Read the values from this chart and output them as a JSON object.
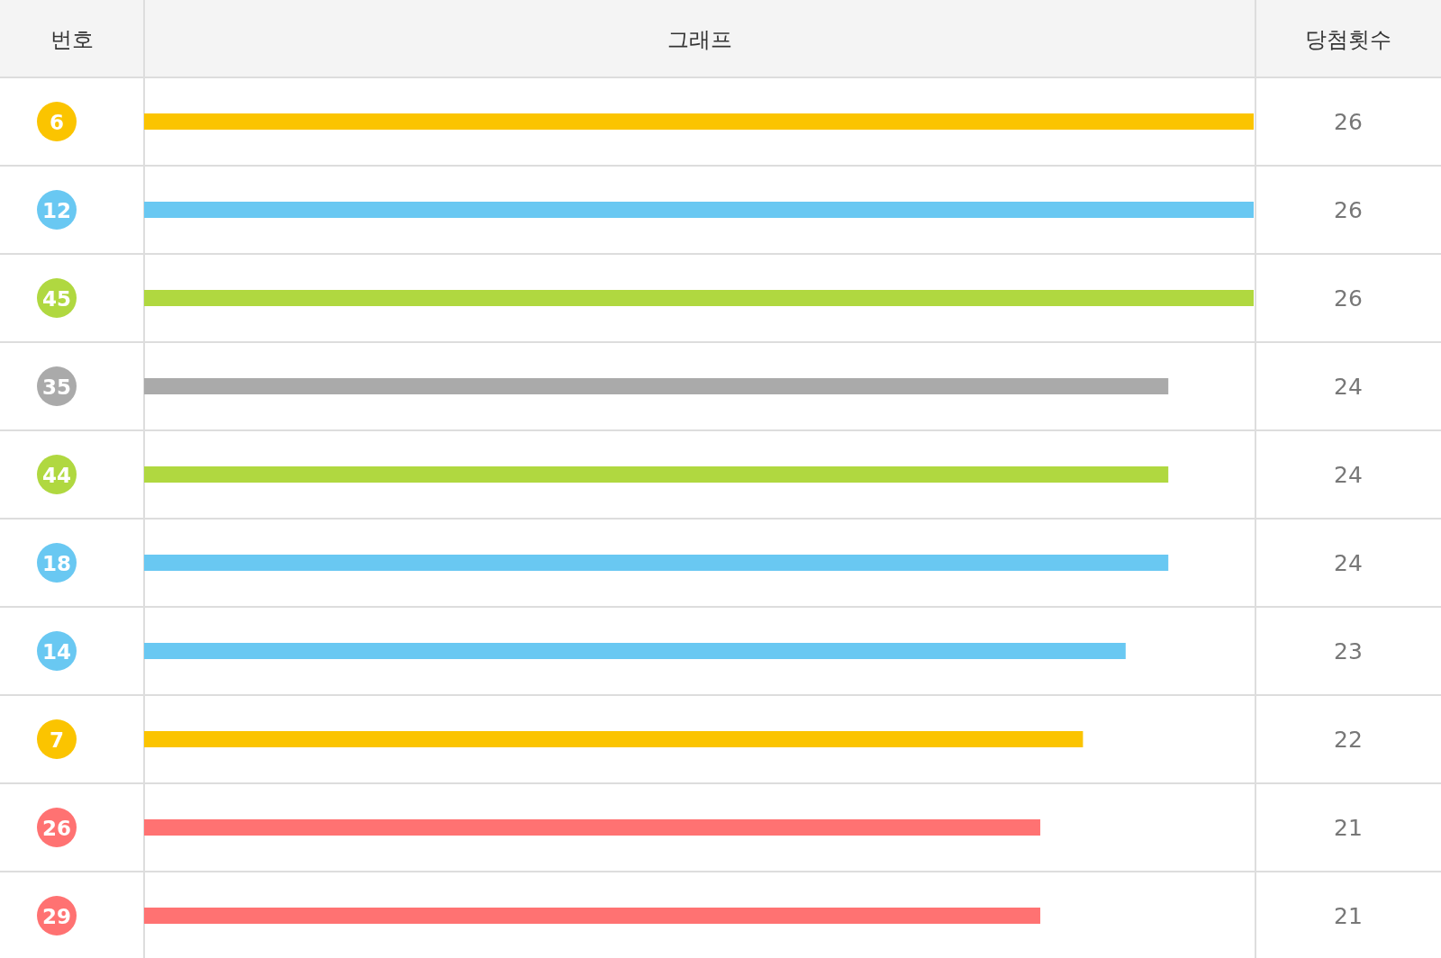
{
  "chart_data": {
    "type": "bar",
    "orientation": "horizontal",
    "title": "그래프",
    "ylabel": "번호",
    "annotations": [
      "당첨횟수"
    ],
    "categories": [
      "6",
      "12",
      "45",
      "35",
      "44",
      "18",
      "14",
      "7",
      "26",
      "29"
    ],
    "values": [
      26,
      26,
      26,
      24,
      24,
      24,
      23,
      22,
      21,
      21
    ],
    "colors": [
      "#fbc400",
      "#69c8f2",
      "#b0d840",
      "#aaaaaa",
      "#b0d840",
      "#69c8f2",
      "#69c8f2",
      "#fbc400",
      "#ff7272",
      "#ff7272"
    ],
    "data_labels": true
  }
}
